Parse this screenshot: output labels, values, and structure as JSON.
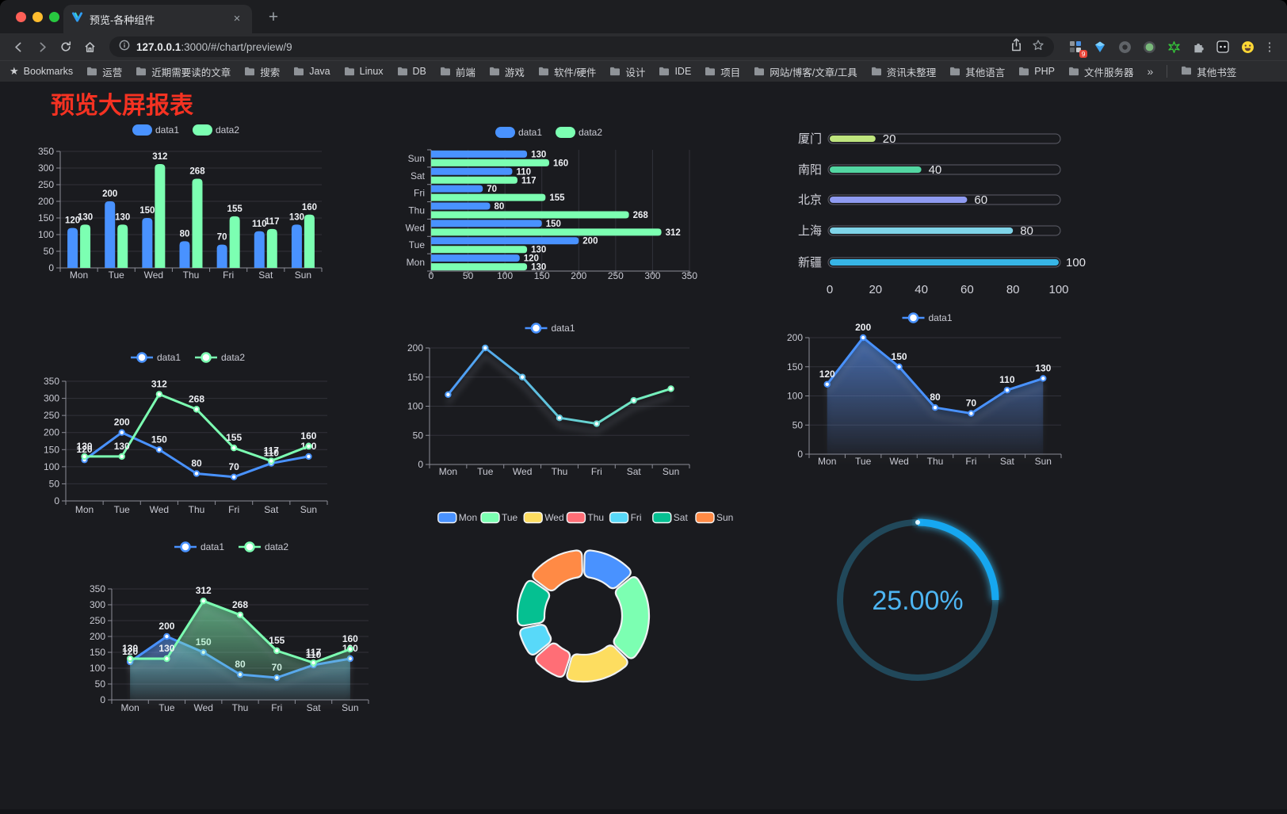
{
  "browser": {
    "traffic_lights": {
      "close": "#ff5f57",
      "minimize": "#febc2e",
      "zoom": "#28c840"
    },
    "tab": {
      "title": "预览-各种组件",
      "close_glyph": "×",
      "new_tab_glyph": "+"
    },
    "address": {
      "host": "127.0.0.1",
      "path": ":3000/#/chart/preview/9"
    },
    "extensions_badge": "9",
    "menu_glyph": "⋮",
    "bookmarks_bar": {
      "bookmarks_label": "Bookmarks",
      "folders": [
        "运营",
        "近期需要读的文章",
        "搜索",
        "Java",
        "Linux",
        "DB",
        "前端",
        "游戏",
        "软件/硬件",
        "设计",
        "IDE",
        "项目",
        "网站/博客/文章/工具",
        "资讯未整理",
        "其他语言",
        "PHP",
        "文件服务器"
      ],
      "overflow_glyph": "»",
      "other_bookmarks": "其他书签"
    }
  },
  "page": {
    "title": "预览大屏报表",
    "title_color": "#f53222",
    "background": "#1a1b1f"
  },
  "chart_data": [
    {
      "id": "grouped-bar",
      "type": "bar",
      "categories": [
        "Mon",
        "Tue",
        "Wed",
        "Thu",
        "Fri",
        "Sat",
        "Sun"
      ],
      "series": [
        {
          "name": "data1",
          "color": "#4992ff",
          "values": [
            120,
            200,
            150,
            80,
            70,
            110,
            130
          ]
        },
        {
          "name": "data2",
          "color": "#7cffb2",
          "values": [
            130,
            130,
            312,
            268,
            155,
            117,
            160
          ]
        }
      ],
      "ylim": [
        0,
        350
      ],
      "yticks": [
        0,
        50,
        100,
        150,
        200,
        250,
        300,
        350
      ],
      "labels": true,
      "grid": true,
      "legend_position": "top"
    },
    {
      "id": "horizontal-bar",
      "type": "bar-horizontal",
      "categories": [
        "Mon",
        "Tue",
        "Wed",
        "Thu",
        "Fri",
        "Sat",
        "Sun"
      ],
      "series": [
        {
          "name": "data1",
          "color": "#4992ff",
          "values": [
            120,
            200,
            150,
            80,
            70,
            110,
            130
          ]
        },
        {
          "name": "data2",
          "color": "#7cffb2",
          "values": [
            130,
            130,
            312,
            268,
            155,
            117,
            160
          ]
        }
      ],
      "xlim": [
        0,
        350
      ],
      "xticks": [
        0,
        50,
        100,
        150,
        200,
        250,
        300,
        350
      ],
      "labels": true,
      "grid": true,
      "legend_position": "top"
    },
    {
      "id": "city-progress",
      "type": "progress",
      "items": [
        {
          "label": "厦门",
          "value": 20,
          "color": "#bfe57e"
        },
        {
          "label": "南阳",
          "value": 40,
          "color": "#53d6a2"
        },
        {
          "label": "北京",
          "value": 60,
          "color": "#8f9bf1"
        },
        {
          "label": "上海",
          "value": 80,
          "color": "#7fd4e8"
        },
        {
          "label": "新疆",
          "value": 100,
          "color": "#37b5e6"
        }
      ],
      "max": 100,
      "xticks": [
        0,
        20,
        40,
        60,
        80,
        100
      ]
    },
    {
      "id": "dual-line",
      "type": "line",
      "categories": [
        "Mon",
        "Tue",
        "Wed",
        "Thu",
        "Fri",
        "Sat",
        "Sun"
      ],
      "series": [
        {
          "name": "data1",
          "color": "#4992ff",
          "values": [
            120,
            200,
            150,
            80,
            70,
            110,
            130
          ]
        },
        {
          "name": "data2",
          "color": "#7cffb2",
          "values": [
            130,
            130,
            312,
            268,
            155,
            117,
            160
          ]
        }
      ],
      "ylim": [
        0,
        350
      ],
      "yticks": [
        0,
        50,
        100,
        150,
        200,
        250,
        300,
        350
      ],
      "labels": true,
      "shadow": false,
      "legend_position": "top"
    },
    {
      "id": "gradient-line",
      "type": "line",
      "categories": [
        "Mon",
        "Tue",
        "Wed",
        "Thu",
        "Fri",
        "Sat",
        "Sun"
      ],
      "series": [
        {
          "name": "data1",
          "gradient": [
            "#4992ff",
            "#7cffb2"
          ],
          "values": [
            120,
            200,
            150,
            80,
            70,
            110,
            130
          ]
        }
      ],
      "ylim": [
        0,
        200
      ],
      "yticks": [
        0,
        50,
        100,
        150,
        200
      ],
      "labels": false,
      "shadow": true,
      "legend_position": "top"
    },
    {
      "id": "area-line",
      "type": "line",
      "categories": [
        "Mon",
        "Tue",
        "Wed",
        "Thu",
        "Fri",
        "Sat",
        "Sun"
      ],
      "series": [
        {
          "name": "data1",
          "color": "#4992ff",
          "values": [
            120,
            200,
            150,
            80,
            70,
            110,
            130
          ],
          "area": true
        }
      ],
      "ylim": [
        0,
        200
      ],
      "yticks": [
        0,
        50,
        100,
        150,
        200
      ],
      "labels": true,
      "shadow": true,
      "legend_position": "top"
    },
    {
      "id": "dual-area-line",
      "type": "line",
      "categories": [
        "Mon",
        "Tue",
        "Wed",
        "Thu",
        "Fri",
        "Sat",
        "Sun"
      ],
      "series": [
        {
          "name": "data1",
          "color": "#4992ff",
          "values": [
            120,
            200,
            150,
            80,
            70,
            110,
            130
          ],
          "area": true
        },
        {
          "name": "data2",
          "color": "#7cffb2",
          "values": [
            130,
            130,
            312,
            268,
            155,
            117,
            160
          ],
          "area": true
        }
      ],
      "ylim": [
        0,
        350
      ],
      "yticks": [
        0,
        50,
        100,
        150,
        200,
        250,
        300,
        350
      ],
      "labels": true,
      "shadow": true,
      "legend_position": "top"
    },
    {
      "id": "weekday-donut",
      "type": "pie",
      "labels": [
        "Mon",
        "Tue",
        "Wed",
        "Thu",
        "Fri",
        "Sat",
        "Sun"
      ],
      "values": [
        120,
        200,
        150,
        80,
        70,
        110,
        130
      ],
      "colors": [
        "#4992ff",
        "#7cffb2",
        "#fddd60",
        "#ff6e76",
        "#58d9f9",
        "#05c091",
        "#ff8a45"
      ],
      "inner_radius_ratio": 0.59,
      "legend_position": "top"
    },
    {
      "id": "percent-gauge",
      "type": "gauge",
      "value": 25,
      "label": "25.00%",
      "progress_color": "#17a7f0",
      "track_color": "#21485a",
      "text_color": "#4db5f2"
    }
  ]
}
